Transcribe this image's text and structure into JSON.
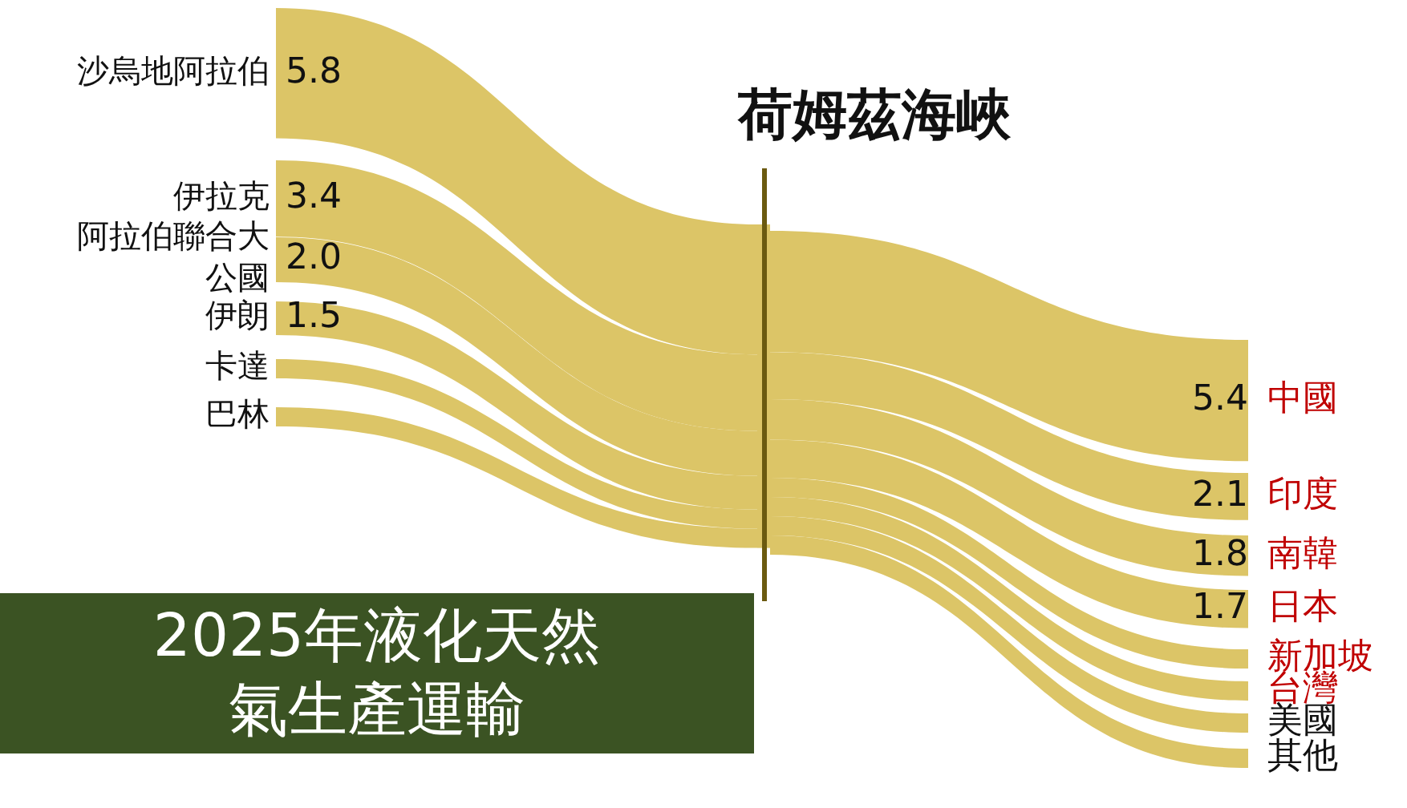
{
  "chart_data": [
    {
      "type": "other",
      "title": "2025年液化天然氣生產運輸",
      "annotations": [
        "荷姆茲海峽"
      ],
      "categories": [
        "沙烏地阿拉伯",
        "伊拉克",
        "阿拉伯聯合大公國",
        "伊朗",
        "卡達",
        "巴林"
      ],
      "values": [
        5.8,
        3.4,
        2.0,
        1.5,
        null,
        null
      ],
      "value_labels": [
        "5.8",
        "3.4",
        "2.0",
        "1.5",
        null,
        null
      ],
      "color": "#dcc567"
    },
    {
      "type": "other",
      "categories": [
        "中國",
        "印度",
        "南韓",
        "日本",
        "新加坡",
        "台灣",
        "美國",
        "其他"
      ],
      "values": [
        5.4,
        2.1,
        1.8,
        1.7,
        null,
        null,
        null,
        null
      ],
      "value_labels": [
        "5.4",
        "2.1",
        "1.8",
        "1.7",
        null,
        null,
        null,
        null
      ],
      "color": "#dcc567"
    }
  ]
}
